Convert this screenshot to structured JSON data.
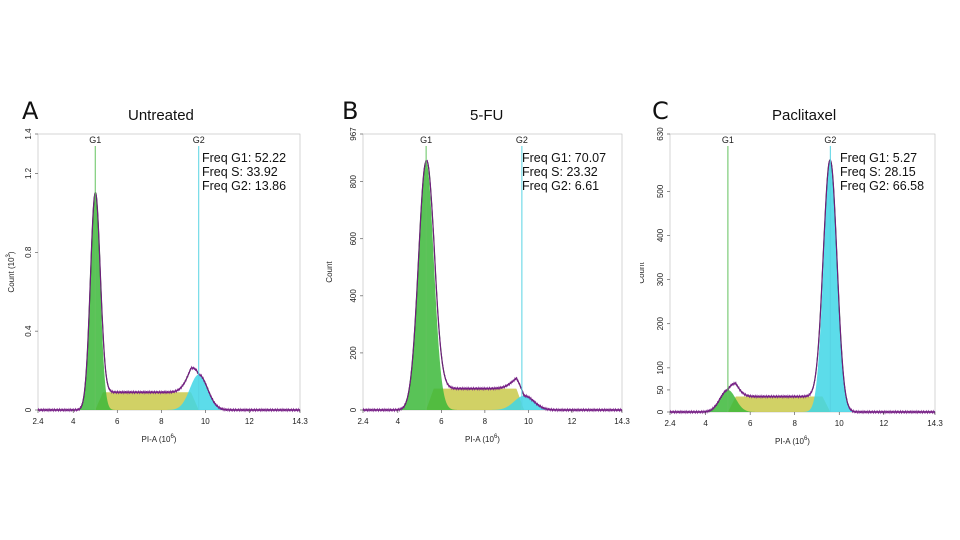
{
  "colors": {
    "g1": "#3cb93a",
    "s": "#c9c94a",
    "g2": "#3fd6e6",
    "outline": "#7a1f8a",
    "fit": "#222222",
    "g1_gate": "#63c25e",
    "g2_gate": "#57d3e3"
  },
  "chart_data": [
    {
      "type": "area",
      "panel_letter": "A",
      "title": "Untreated",
      "xlabel": "PI-A  (10",
      "xlabel_exp": "6",
      "xlabel_close": ")",
      "ylabel": "Count  (10",
      "ylabel_exp": "3",
      "ylabel_close": ")",
      "xlim": [
        2.4,
        14.3
      ],
      "ylim": [
        0,
        1.4
      ],
      "x_ticks": [
        "2.4",
        "4",
        "6",
        "8",
        "10",
        "12",
        "14.3"
      ],
      "x_tick_values": [
        2.4,
        4,
        6,
        8,
        10,
        12,
        14.3
      ],
      "y_ticks": [
        "0",
        "0.4",
        "0.8",
        "1.2",
        "1.4"
      ],
      "y_tick_values": [
        0,
        0.4,
        0.8,
        1.2,
        1.4
      ],
      "gates": [
        {
          "name": "G1",
          "x": 5.0
        },
        {
          "name": "G2",
          "x": 9.7
        }
      ],
      "freq_labels": [
        "Freq G1: 52.22",
        "Freq S: 33.92",
        "Freq G2: 13.86"
      ],
      "g1": {
        "mean": 5.0,
        "sd": 0.22,
        "peak": 1.1
      },
      "g2": {
        "mean": 9.7,
        "sd": 0.4,
        "peak": 0.18
      },
      "s_phase": {
        "start": 5.0,
        "end": 9.7,
        "level": 0.09
      }
    },
    {
      "type": "area",
      "panel_letter": "B",
      "title": "5-FU",
      "xlabel": "PI-A  (10",
      "xlabel_exp": "6",
      "xlabel_close": ")",
      "ylabel": "Count",
      "ylabel_exp": "",
      "ylabel_close": "",
      "xlim": [
        2.4,
        14.3
      ],
      "ylim": [
        0,
        967
      ],
      "x_ticks": [
        "2.4",
        "4",
        "6",
        "8",
        "10",
        "12",
        "14.3"
      ],
      "x_tick_values": [
        2.4,
        4,
        6,
        8,
        10,
        12,
        14.3
      ],
      "y_ticks": [
        "0",
        "200",
        "400",
        "600",
        "800",
        "967"
      ],
      "y_tick_values": [
        0,
        200,
        400,
        600,
        800,
        967
      ],
      "gates": [
        {
          "name": "G1",
          "x": 5.3
        },
        {
          "name": "G2",
          "x": 9.7
        }
      ],
      "freq_labels": [
        "Freq G1: 70.07",
        "Freq S: 23.32",
        "Freq G2: 6.61"
      ],
      "g1": {
        "mean": 5.3,
        "sd": 0.35,
        "peak": 870
      },
      "g2": {
        "mean": 9.8,
        "sd": 0.45,
        "peak": 50
      },
      "s_phase": {
        "start": 5.3,
        "end": 9.8,
        "level": 75
      }
    },
    {
      "type": "area",
      "panel_letter": "C",
      "title": "Paclitaxel",
      "xlabel": "PI-A  (10",
      "xlabel_exp": "6",
      "xlabel_close": ")",
      "ylabel": "Count",
      "ylabel_exp": "",
      "ylabel_close": "",
      "xlim": [
        2.4,
        14.3
      ],
      "ylim": [
        0,
        630
      ],
      "x_ticks": [
        "2.4",
        "4",
        "6",
        "8",
        "10",
        "12",
        "14.3"
      ],
      "x_tick_values": [
        2.4,
        4,
        6,
        8,
        10,
        12,
        14.3
      ],
      "y_ticks": [
        "0",
        "50",
        "100",
        "200",
        "300",
        "400",
        "500",
        "630"
      ],
      "y_tick_values": [
        0,
        50,
        100,
        200,
        300,
        400,
        500,
        630
      ],
      "gates": [
        {
          "name": "G1",
          "x": 5.0
        },
        {
          "name": "G2",
          "x": 9.6
        }
      ],
      "freq_labels": [
        "Freq G1: 5.27",
        "Freq S: 28.15",
        "Freq G2: 66.58"
      ],
      "g1": {
        "mean": 5.0,
        "sd": 0.35,
        "peak": 50
      },
      "g2": {
        "mean": 9.6,
        "sd": 0.3,
        "peak": 570
      },
      "s_phase": {
        "start": 5.0,
        "end": 9.6,
        "level": 35
      }
    }
  ]
}
